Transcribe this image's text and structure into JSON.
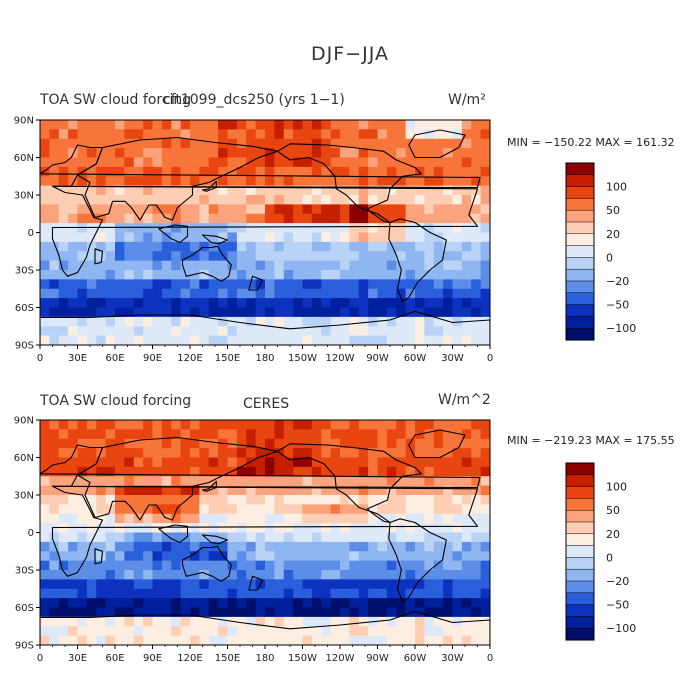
{
  "page_title": "DJF−JJA",
  "chart_data": [
    {
      "type": "heatmap",
      "title_left": "TOA SW cloud forcing",
      "title_center": "cft1099_dcs250 (yrs 1−1)",
      "units": "W/m²",
      "stats": "MIN = −150.22  MAX = 161.32",
      "min": -150.22,
      "max": 161.32,
      "x_ticks": [
        "0",
        "30E",
        "60E",
        "90E",
        "120E",
        "150E",
        "180",
        "150W",
        "120W",
        "90W",
        "60W",
        "30W",
        "0"
      ],
      "y_ticks": [
        "90N",
        "60N",
        "30N",
        "0",
        "30S",
        "60S",
        "90S"
      ],
      "xlim": [
        0,
        360
      ],
      "ylim": [
        -90,
        90
      ]
    },
    {
      "type": "heatmap",
      "title_left": "TOA SW cloud forcing",
      "title_center": "CERES",
      "units": "W/m^2",
      "stats": "MIN = −219.23  MAX = 175.55",
      "min": -219.23,
      "max": 175.55,
      "x_ticks": [
        "0",
        "30E",
        "60E",
        "90E",
        "120E",
        "150E",
        "180",
        "150W",
        "120W",
        "90W",
        "60W",
        "30W",
        "0"
      ],
      "y_ticks": [
        "90N",
        "60N",
        "30N",
        "0",
        "30S",
        "60S",
        "90S"
      ],
      "xlim": [
        0,
        360
      ],
      "ylim": [
        -90,
        90
      ]
    }
  ],
  "colorbar": {
    "labels": [
      "100",
      "50",
      "20",
      "0",
      "−20",
      "−50",
      "−100"
    ],
    "colors": [
      "#8b0000",
      "#c42000",
      "#e84510",
      "#f7743a",
      "#fba37c",
      "#fdcdb4",
      "#fdeee2",
      "#dde9f8",
      "#b8d3f5",
      "#8fb6f0",
      "#5c8ee8",
      "#2a5fdc",
      "#0d32c0",
      "#001f9c",
      "#000e6c"
    ]
  }
}
